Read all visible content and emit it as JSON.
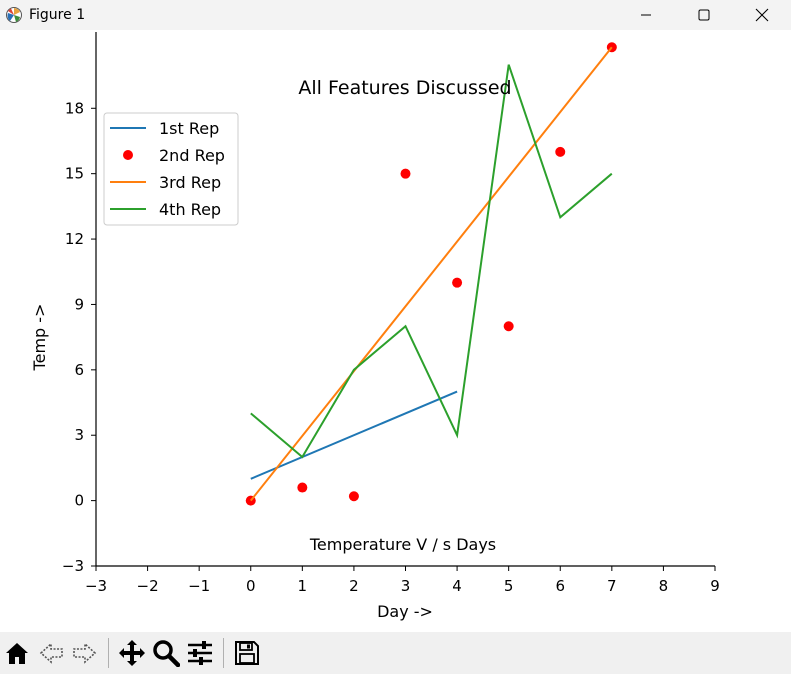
{
  "window": {
    "title": "Figure 1",
    "app_icon": "matplotlib-icon",
    "controls": [
      "minimize-icon",
      "maximize-icon",
      "close-icon"
    ]
  },
  "chart_data": {
    "type": "line",
    "title": "All Features Discussed",
    "xlabel": "Day ->",
    "ylabel": "Temp ->",
    "annotation": "Temperature V / s Days",
    "xlim": [
      -3,
      9
    ],
    "ylim": [
      -3,
      21.5
    ],
    "xticks": [
      -3,
      -2,
      -1,
      0,
      1,
      2,
      3,
      4,
      5,
      6,
      7,
      8,
      9
    ],
    "yticks": [
      -3,
      0,
      3,
      6,
      9,
      12,
      15,
      18
    ],
    "xtick_labels": [
      "−3",
      "−2",
      "−1",
      "0",
      "1",
      "2",
      "3",
      "4",
      "5",
      "6",
      "7",
      "8",
      "9"
    ],
    "ytick_labels": [
      "−3",
      "0",
      "3",
      "6",
      "9",
      "12",
      "15",
      "18"
    ],
    "grid": false,
    "legend_placement": "upper-left",
    "series": [
      {
        "name": "1st Rep",
        "style": "line",
        "color": "#1f77b4",
        "x": [
          0,
          4
        ],
        "y": [
          1,
          5
        ]
      },
      {
        "name": "2nd Rep",
        "style": "scatter",
        "color": "#ff0000",
        "x": [
          0,
          1,
          2,
          3,
          4,
          5,
          6,
          7
        ],
        "y": [
          0,
          0.6,
          0.2,
          15,
          10,
          8,
          16,
          20.8
        ]
      },
      {
        "name": "3rd Rep",
        "style": "line",
        "color": "#ff7f0e",
        "x": [
          0,
          7
        ],
        "y": [
          0,
          20.8
        ]
      },
      {
        "name": "4th Rep",
        "style": "line",
        "color": "#2ca02c",
        "x": [
          0,
          1,
          2,
          3,
          4,
          5,
          6,
          7
        ],
        "y": [
          4,
          2,
          6,
          8,
          3,
          20,
          13,
          15
        ]
      }
    ]
  },
  "toolbar": {
    "buttons": [
      "home-icon",
      "back-icon",
      "forward-icon",
      "pan-icon",
      "zoom-icon",
      "configure-subplots-icon",
      "save-icon"
    ]
  }
}
